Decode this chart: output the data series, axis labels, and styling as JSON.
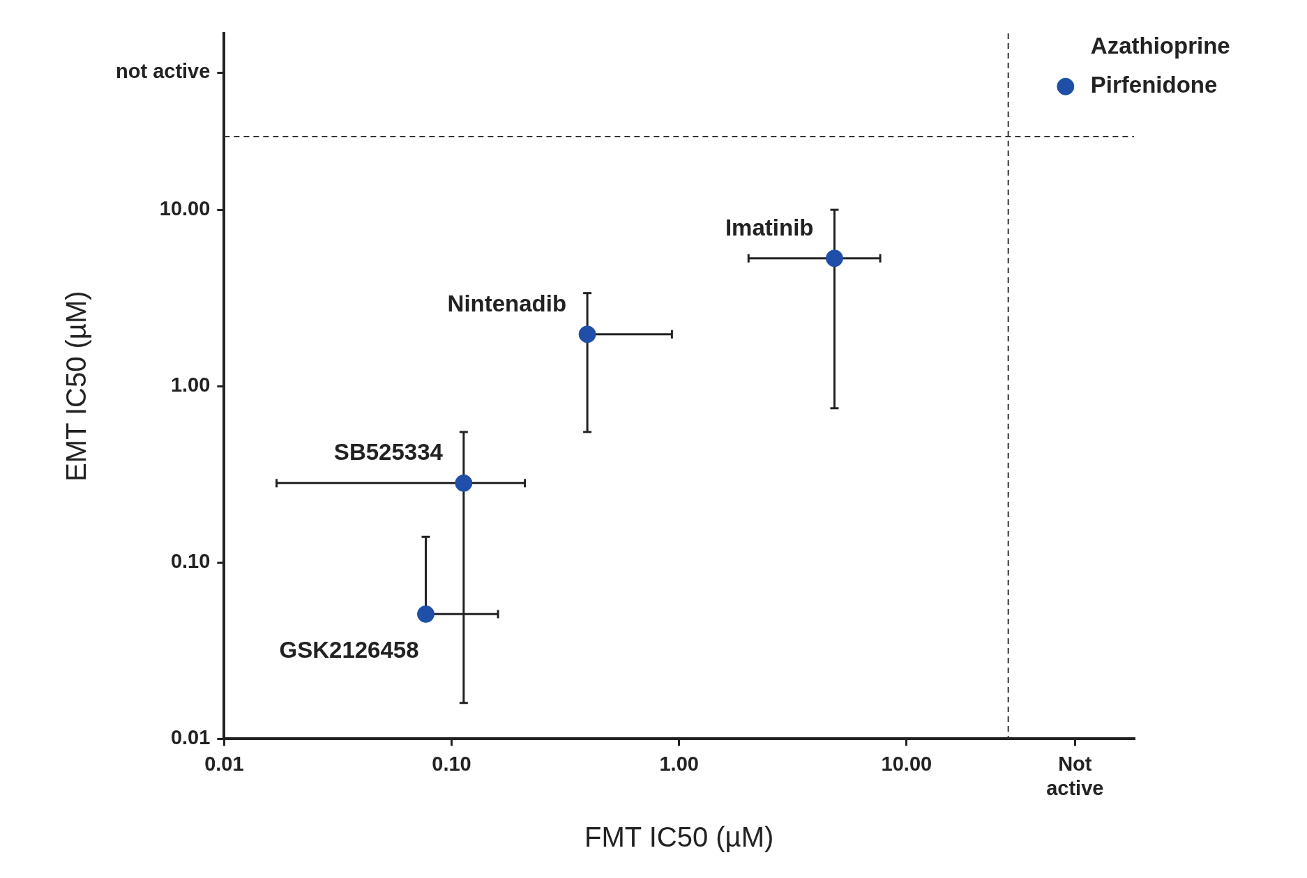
{
  "chart_data": {
    "type": "scatter",
    "xlabel": "FMT IC50 (µM)",
    "ylabel": "EMT IC50 (µM)",
    "log": "xy",
    "xlim": [
      0.01,
      100
    ],
    "ylim": [
      0.01,
      100
    ],
    "xticks": [
      0.01,
      {
        "value": 0.1,
        "label": "0.10"
      },
      {
        "value": 1,
        "label": "1.00"
      },
      {
        "value": 10,
        "label": "10.00"
      },
      {
        "value": 55,
        "label": "Not active"
      }
    ],
    "yticks": [
      0.01,
      {
        "value": 0.1,
        "label": "0.10"
      },
      {
        "value": 1,
        "label": "1.00"
      },
      {
        "value": 10,
        "label": "10.00"
      },
      {
        "value": 60,
        "label": "not active"
      }
    ],
    "marker": "circle",
    "series": [
      {
        "color": "#1f4fa8",
        "x": [
          0.077,
          0.113,
          0.395,
          4.82
        ],
        "values": [
          0.051,
          0.282,
          1.97,
          5.31
        ],
        "xerrors": [
          [
            0.077,
            0.16
          ],
          [
            0.017,
            0.21
          ],
          [
            0.395,
            0.93
          ],
          [
            2.02,
            7.66
          ]
        ],
        "errors": [
          [
            0.051,
            0.14
          ],
          [
            0.016,
            0.55
          ],
          [
            0.55,
            3.37
          ],
          [
            0.75,
            10
          ]
        ]
      },
      {
        "name": "Pirfenidone",
        "color": "#1f4fa8",
        "x": [
          50
        ],
        "values": [
          50
        ]
      }
    ],
    "ref_lines": [
      {
        "axis": "x",
        "value": 28,
        "line_style": "dashed",
        "color": "#333333"
      },
      {
        "axis": "y",
        "value": 26,
        "line_style": "dashed",
        "color": "#333333"
      }
    ],
    "annotations": [
      "Azathioprine",
      {
        "text": "Imatinib",
        "x": 4.82,
        "y": 5.31
      },
      {
        "text": "Nintenadib",
        "x": 0.395,
        "y": 1.97
      },
      {
        "text": "SB525334",
        "x": 0.113,
        "y": 0.282
      },
      {
        "text": "GSK2126458",
        "x": 0.077,
        "y": 0.051
      }
    ]
  }
}
